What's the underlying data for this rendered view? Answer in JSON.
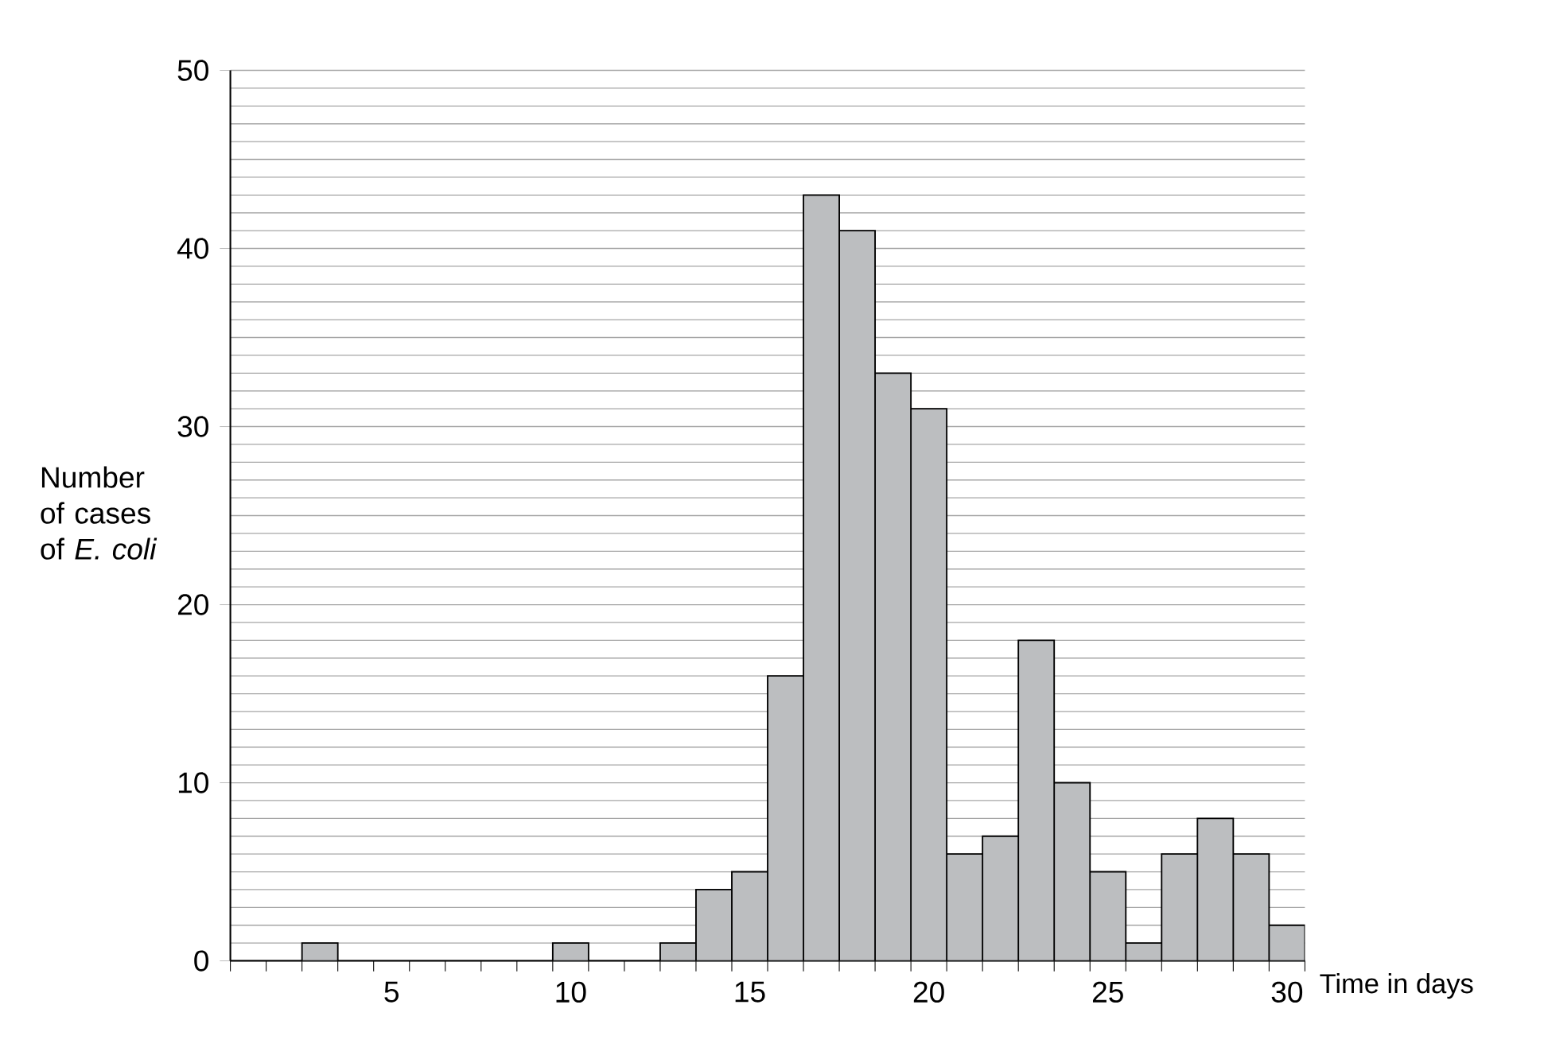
{
  "chart_data": {
    "type": "bar",
    "xlabel": "Time in days",
    "ylabel": "Number of cases of *E. coli*",
    "categories": [
      null,
      null,
      null,
      null,
      "5",
      null,
      null,
      null,
      null,
      "10",
      null,
      null,
      null,
      null,
      "15",
      null,
      null,
      null,
      null,
      "20",
      null,
      null,
      null,
      null,
      "25",
      null,
      null,
      null,
      null,
      "30"
    ],
    "values": [
      0,
      0,
      1,
      0,
      0,
      0,
      0,
      0,
      0,
      1,
      0,
      0,
      1,
      4,
      5,
      16,
      43,
      41,
      33,
      31,
      6,
      7,
      18,
      10,
      5,
      1,
      6,
      8,
      6,
      2
    ],
    "color": "#bcbec0",
    "ylim": [
      0,
      50
    ],
    "yticks": [
      0,
      10,
      20,
      30,
      40,
      50
    ],
    "grid": "y"
  }
}
